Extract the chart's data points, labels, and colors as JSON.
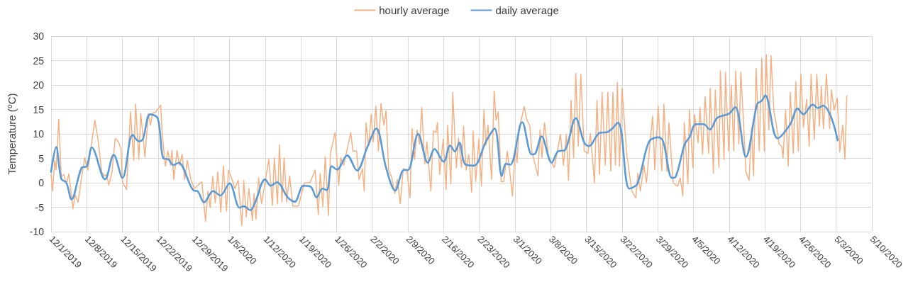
{
  "chart_data": {
    "type": "line",
    "ylabel": "Temperature (⁰C)",
    "legend": "top",
    "grid": true,
    "marker": "none",
    "xlim": [
      "2019-12-01",
      "2020-05-10"
    ],
    "xticks": [
      {
        "value": "2019-12-01",
        "label": "12/1/2019"
      },
      {
        "value": "2019-12-08",
        "label": "12/8/2019"
      },
      {
        "value": "2019-12-15",
        "label": "12/15/2019"
      },
      {
        "value": "2019-12-22",
        "label": "12/22/2019"
      },
      {
        "value": "2019-12-29",
        "label": "12/29/2019"
      },
      {
        "value": "2020-01-05",
        "label": "1/5/2020"
      },
      {
        "value": "2020-01-12",
        "label": "1/12/2020"
      },
      {
        "value": "2020-01-19",
        "label": "1/19/2020"
      },
      {
        "value": "2020-01-26",
        "label": "1/26/2020"
      },
      {
        "value": "2020-02-02",
        "label": "2/2/2020"
      },
      {
        "value": "2020-02-09",
        "label": "2/9/2020"
      },
      {
        "value": "2020-02-16",
        "label": "2/16/2020"
      },
      {
        "value": "2020-02-23",
        "label": "2/23/2020"
      },
      {
        "value": "2020-03-01",
        "label": "3/1/2020"
      },
      {
        "value": "2020-03-08",
        "label": "3/8/2020"
      },
      {
        "value": "2020-03-15",
        "label": "3/15/2020"
      },
      {
        "value": "2020-03-22",
        "label": "3/22/2020"
      },
      {
        "value": "2020-03-29",
        "label": "3/29/2020"
      },
      {
        "value": "2020-04-05",
        "label": "4/5/2020"
      },
      {
        "value": "2020-04-12",
        "label": "4/12/2020"
      },
      {
        "value": "2020-04-19",
        "label": "4/19/2020"
      },
      {
        "value": "2020-04-26",
        "label": "4/26/2020"
      },
      {
        "value": "2020-05-03",
        "label": "5/3/2020"
      },
      {
        "value": "2020-05-10",
        "label": "5/10/2020"
      }
    ],
    "ylim": [
      -10,
      30
    ],
    "yticks": [
      -10,
      -5,
      0,
      5,
      10,
      15,
      20,
      25,
      30
    ],
    "series": [
      {
        "name": "hourly average",
        "color": "#f4b183",
        "x": [
          "2019-12-01T00:00",
          "2019-12-01T07:00",
          "2019-12-01T17:00",
          "2019-12-02T00:00",
          "2019-12-02T12:00",
          "2019-12-03T00:00",
          "2019-12-03T12:00",
          "2019-12-04T00:00",
          "2019-12-04T12:00",
          "2019-12-05T07:00",
          "2019-12-05T17:00",
          "2019-12-06T07:00",
          "2019-12-07T00:00",
          "2019-12-07T14:00",
          "2019-12-08T05:00",
          "2019-12-09T14:00",
          "2019-12-10T05:00",
          "2019-12-10T22:00",
          "2019-12-11T12:00",
          "2019-12-11T22:00",
          "2019-12-12T07:00",
          "2019-12-12T22:00",
          "2019-12-13T14:00",
          "2019-12-14T05:00",
          "2019-12-14T17:00",
          "2019-12-15T00:00",
          "2019-12-15T19:00",
          "2019-12-16T14:00",
          "2019-12-17T05:00",
          "2019-12-17T14:00",
          "2019-12-18T05:00",
          "2019-12-18T14:00",
          "2019-12-19T10:00",
          "2019-12-20T02:00",
          "2019-12-20T12:00",
          "2019-12-20T22:00",
          "2019-12-21T14:00",
          "2019-12-22T12:00",
          "2019-12-22T19:00",
          "2019-12-23T10:00",
          "2019-12-23T22:00",
          "2019-12-24T10:00",
          "2019-12-24T17:00",
          "2019-12-25T02:00",
          "2019-12-25T17:00",
          "2019-12-26T05:00",
          "2019-12-26T17:00",
          "2019-12-27T05:00",
          "2019-12-27T17:00",
          "2019-12-28T10:00",
          "2019-12-29T02:00",
          "2019-12-29T19:00",
          "2019-12-30T14:00",
          "2019-12-31T07:00",
          "2019-12-31T19:00",
          "2020-01-01T05:00",
          "2020-01-01T17:00",
          "2020-01-02T05:00",
          "2020-01-02T17:00",
          "2020-01-03T07:00",
          "2020-01-03T19:00",
          "2020-01-04T10:00",
          "2020-01-04T19:00",
          "2020-01-05T12:00",
          "2020-01-06T02:00",
          "2020-01-06T17:00",
          "2020-01-07T10:00",
          "2020-01-07T19:00",
          "2020-01-08T07:00",
          "2020-01-08T19:00",
          "2020-01-09T12:00",
          "2020-01-09T19:00",
          "2020-01-10T05:00",
          "2020-01-10T17:00",
          "2020-01-11T07:00",
          "2020-01-12T17:00",
          "2020-01-13T10:00",
          "2020-01-13T19:00",
          "2020-01-14T10:00",
          "2020-01-14T19:00",
          "2020-01-15T07:00",
          "2020-01-15T17:00",
          "2020-01-16T05:00",
          "2020-01-16T19:00",
          "2020-01-17T10:00",
          "2020-01-18T12:00",
          "2020-01-19T17:00",
          "2020-01-20T19:00",
          "2020-01-21T19:00",
          "2020-01-22T10:00",
          "2020-01-22T19:00",
          "2020-01-23T07:00",
          "2020-01-23T19:00",
          "2020-01-24T10:00",
          "2020-01-24T19:00",
          "2020-01-25T17:00",
          "2020-01-26T10:00",
          "2020-01-26T19:00",
          "2020-01-27T10:00",
          "2020-01-28T19:00",
          "2020-01-29T05:00",
          "2020-01-29T22:00",
          "2020-01-30T10:00",
          "2020-01-31T02:00",
          "2020-01-31T10:00",
          "2020-01-31T19:00",
          "2020-02-01T07:00",
          "2020-02-01T19:00",
          "2020-02-02T05:00",
          "2020-02-02T17:00",
          "2020-02-03T05:00",
          "2020-02-03T17:00",
          "2020-02-04T07:00",
          "2020-02-04T17:00",
          "2020-02-05T05:00",
          "2020-02-05T19:00",
          "2020-02-06T10:00",
          "2020-02-06T22:00",
          "2020-02-07T12:00",
          "2020-02-08T02:00",
          "2020-02-08T19:00",
          "2020-02-09T10:00",
          "2020-02-09T19:00",
          "2020-02-10T07:00",
          "2020-02-10T19:00",
          "2020-02-11T07:00",
          "2020-02-11T17:00",
          "2020-02-12T07:00",
          "2020-02-12T17:00",
          "2020-02-13T12:00",
          "2020-02-14T00:00",
          "2020-02-14T12:00",
          "2020-02-14T19:00",
          "2020-02-15T05:00",
          "2020-02-15T22:00",
          "2020-02-16T12:00",
          "2020-02-16T19:00",
          "2020-02-17T10:00",
          "2020-02-17T19:00",
          "2020-02-18T12:00",
          "2020-02-18T22:00",
          "2020-02-19T12:00",
          "2020-02-19T22:00",
          "2020-02-20T10:00",
          "2020-02-20T22:00",
          "2020-02-21T12:00",
          "2020-02-21T19:00",
          "2020-02-22T07:00",
          "2020-02-22T22:00",
          "2020-02-23T10:00",
          "2020-02-23T22:00",
          "2020-02-24T07:00",
          "2020-02-24T17:00",
          "2020-02-25T10:00",
          "2020-02-25T22:00",
          "2020-02-26T07:00",
          "2020-02-26T17:00",
          "2020-02-27T07:00",
          "2020-02-27T19:00",
          "2020-02-28T12:00",
          "2020-02-29T12:00",
          "2020-03-01T02:00",
          "2020-03-01T10:00",
          "2020-03-01T19:00",
          "2020-03-02T10:00",
          "2020-03-02T19:00",
          "2020-03-03T07:00",
          "2020-03-03T22:00",
          "2020-03-04T07:00",
          "2020-03-05T12:00",
          "2020-03-05T22:00",
          "2020-03-06T07:00",
          "2020-03-06T19:00",
          "2020-03-07T14:00",
          "2020-03-08T17:00",
          "2020-03-09T22:00",
          "2020-03-10T12:00",
          "2020-03-11T02:00",
          "2020-03-11T12:00",
          "2020-03-12T00:00",
          "2020-03-12T12:00",
          "2020-03-12T22:00",
          "2020-03-13T10:00",
          "2020-03-13T22:00",
          "2020-03-14T14:00",
          "2020-03-15T07:00",
          "2020-03-15T19:00",
          "2020-03-16T14:00",
          "2020-03-17T02:00",
          "2020-03-17T14:00",
          "2020-03-18T02:00",
          "2020-03-18T17:00",
          "2020-03-19T05:00",
          "2020-03-19T19:00",
          "2020-03-20T05:00",
          "2020-03-20T17:00",
          "2020-03-21T02:00",
          "2020-03-21T12:00",
          "2020-03-22T00:00",
          "2020-03-22T22:00",
          "2020-03-23T22:00",
          "2020-03-24T17:00",
          "2020-03-25T02:00",
          "2020-03-25T14:00",
          "2020-03-26T07:00",
          "2020-03-26T19:00",
          "2020-03-27T07:00",
          "2020-03-28T00:00",
          "2020-03-28T10:00",
          "2020-03-29T02:00",
          "2020-03-29T19:00",
          "2020-03-30T05:00",
          "2020-03-30T19:00",
          "2020-03-31T05:00",
          "2020-04-01T00:00",
          "2020-04-01T22:00",
          "2020-04-02T10:00",
          "2020-04-02T22:00",
          "2020-04-03T05:00",
          "2020-04-03T22:00",
          "2020-04-04T05:00",
          "2020-04-04T22:00",
          "2020-04-05T05:00",
          "2020-04-05T22:00",
          "2020-04-06T07:00",
          "2020-04-06T19:00",
          "2020-04-07T07:00",
          "2020-04-08T00:00",
          "2020-04-08T07:00",
          "2020-04-08T22:00",
          "2020-04-09T07:00",
          "2020-04-10T00:00",
          "2020-04-10T07:00",
          "2020-04-11T00:00",
          "2020-04-11T07:00",
          "2020-04-11T22:00",
          "2020-04-12T10:00",
          "2020-04-12T22:00",
          "2020-04-13T07:00",
          "2020-04-13T22:00",
          "2020-04-14T07:00",
          "2020-04-14T19:00",
          "2020-04-15T07:00",
          "2020-04-15T22:00",
          "2020-04-16T10:00",
          "2020-04-16T19:00",
          "2020-04-17T07:00",
          "2020-04-17T22:00",
          "2020-04-18T10:00",
          "2020-04-18T22:00",
          "2020-04-19T07:00",
          "2020-04-19T19:00",
          "2020-04-20T05:00",
          "2020-04-20T19:00",
          "2020-04-21T07:00",
          "2020-04-21T19:00",
          "2020-04-22T07:00",
          "2020-04-22T14:00",
          "2020-04-23T02:00",
          "2020-04-23T14:00",
          "2020-04-24T00:00",
          "2020-04-24T14:00",
          "2020-04-25T02:00",
          "2020-04-25T14:00",
          "2020-04-26T02:00",
          "2020-04-26T14:00",
          "2020-04-27T05:00",
          "2020-04-27T17:00",
          "2020-04-28T02:00",
          "2020-04-28T17:00",
          "2020-04-29T05:00",
          "2020-04-29T17:00",
          "2020-04-30T02:00",
          "2020-04-30T12:00",
          "2020-05-01T02:00",
          "2020-05-01T17:00",
          "2020-05-02T02:00",
          "2020-05-02T14:00",
          "2020-05-03T05:00",
          "2020-05-03T17:00",
          "2020-05-04T07:00",
          "2020-05-04T17:00",
          "2020-05-05T02:00"
        ],
        "values": [
          1.7,
          -1.7,
          4.6,
          2.6,
          13.0,
          1.2,
          1.7,
          -0.2,
          1.8,
          -5.3,
          -2.4,
          -4.0,
          1.2,
          5.1,
          2.6,
          12.8,
          8.9,
          2.2,
          1.4,
          1.7,
          -0.5,
          1.9,
          9.1,
          8.4,
          7.0,
          0.2,
          -1.4,
          14.5,
          4.6,
          16.1,
          4.8,
          14.2,
          5.3,
          14.2,
          11.8,
          14.2,
          14.5,
          15.9,
          9.9,
          3.4,
          6.5,
          3.6,
          6.6,
          0.7,
          6.6,
          3.6,
          5.8,
          0.7,
          4.6,
          0.7,
          -1.2,
          -0.5,
          0.2,
          -7.9,
          -1.7,
          -5.1,
          1.3,
          -4.1,
          2.2,
          -6.0,
          3.4,
          -5.8,
          2.6,
          0.7,
          -1.2,
          0.5,
          -8.8,
          0.5,
          -7.0,
          -1.2,
          -7.7,
          -2.2,
          -7.5,
          1.0,
          -4.3,
          4.8,
          -4.6,
          5.1,
          -4.3,
          7.7,
          -3.9,
          5.1,
          -3.9,
          1.4,
          -4.8,
          -4.8,
          0.0,
          0.0,
          2.6,
          -6.5,
          1.9,
          -4.8,
          5.3,
          -6.7,
          6.0,
          10.3,
          -0.5,
          5.1,
          3.6,
          10.3,
          6.5,
          6.5,
          0.7,
          2.9,
          -1.7,
          12.3,
          7.5,
          14.0,
          8.4,
          15.7,
          6.5,
          16.2,
          11.8,
          14.7,
          2.6,
          1.2,
          -2.2,
          0.7,
          -4.3,
          2.9,
          2.6,
          -3.1,
          11.1,
          4.8,
          10.8,
          7.9,
          15.4,
          3.8,
          8.4,
          -1.7,
          10.6,
          10.3,
          12.3,
          1.7,
          8.9,
          -1.4,
          11.8,
          -0.2,
          18.5,
          3.1,
          9.1,
          3.1,
          11.6,
          2.6,
          5.8,
          -1.9,
          10.6,
          0.2,
          8.9,
          -0.7,
          14.9,
          7.7,
          11.8,
          0.7,
          18.8,
          12.8,
          14.5,
          0.2,
          0.2,
          6.5,
          -2.7,
          7.5,
          4.1,
          11.3,
          13.7,
          15.6,
          13.0,
          11.6,
          6.5,
          1.4,
          10.8,
          5.1,
          12.3,
          5.3,
          3.1,
          9.9,
          3.6,
          9.9,
          0.5,
          16.9,
          5.1,
          22.4,
          7.5,
          22.2,
          6.5,
          6.0,
          10.1,
          0.0,
          16.9,
          1.7,
          18.5,
          3.6,
          18.5,
          2.4,
          18.5,
          3.6,
          20.5,
          3.4,
          19.3,
          5.8,
          -1.7,
          -3.1,
          1.9,
          -1.7,
          3.6,
          0.0,
          6.0,
          13.7,
          2.6,
          15.7,
          2.4,
          16.1,
          2.4,
          12.3,
          0.0,
          -0.7,
          1.0,
          -2.7,
          12.3,
          -0.2,
          14.9,
          3.1,
          14.0,
          8.2,
          15.4,
          5.8,
          17.6,
          6.0,
          19.3,
          1.9,
          19.0,
          3.1,
          22.9,
          4.8,
          22.6,
          6.5,
          20.0,
          6.5,
          22.9,
          7.9,
          22.6,
          13.2,
          2.2,
          0.5,
          11.3,
          1.4,
          23.4,
          6.5,
          25.5,
          6.5,
          26.2,
          10.8,
          26.0,
          14.5,
          11.8,
          7.9,
          7.5,
          5.1,
          14.9,
          3.4,
          18.5,
          6.0,
          20.7,
          6.5,
          22.2,
          11.3,
          17.1,
          7.5,
          22.2,
          8.9,
          22.2,
          11.6,
          19.7,
          11.1,
          22.2,
          11.1,
          19.0,
          14.9,
          17.3,
          6.3,
          11.8,
          4.8,
          17.8
        ]
      },
      {
        "name": "daily average",
        "color": "#5b9bd5",
        "x": [
          "2019-12-01",
          "2019-12-02",
          "2019-12-03",
          "2019-12-04",
          "2019-12-05",
          "2019-12-07",
          "2019-12-08",
          "2019-12-09",
          "2019-12-11T14:00",
          "2019-12-13T07:00",
          "2019-12-15",
          "2019-12-17",
          "2019-12-18T05:00",
          "2019-12-19",
          "2019-12-20T10:00",
          "2019-12-21T22:00",
          "2019-12-23",
          "2019-12-24",
          "2019-12-25",
          "2019-12-26",
          "2019-12-29",
          "2019-12-29T17:00",
          "2019-12-31",
          "2020-01-01T19:00",
          "2020-01-03T05:00",
          "2020-01-05",
          "2020-01-07",
          "2020-01-07T19:00",
          "2020-01-09T02:00",
          "2020-01-10",
          "2020-01-12",
          "2020-01-13T02:00",
          "2020-01-14T07:00",
          "2020-01-16T10:00",
          "2020-01-17T19:00",
          "2020-01-19T12:00",
          "2020-01-20T22:00",
          "2020-01-22T02:00",
          "2020-01-23T05:00",
          "2020-01-24T02:00",
          "2020-01-25T02:00",
          "2020-01-26T02:00",
          "2020-01-28T02:00",
          "2020-01-30",
          "2020-02-01",
          "2020-02-02T19:00",
          "2020-02-04T17:00",
          "2020-02-06T12:00",
          "2020-02-08T05:00",
          "2020-02-09",
          "2020-02-11",
          "2020-02-12T22:00",
          "2020-02-14T05:00",
          "2020-02-16",
          "2020-02-17T07:00",
          "2020-02-18T05:00",
          "2020-02-19T02:00",
          "2020-02-20T05:00",
          "2020-02-21T22:00",
          "2020-02-24T07:00",
          "2020-02-26",
          "2020-02-27T10:00",
          "2020-02-28T05:00",
          "2020-02-29T02:00",
          "2020-03-02T10:00",
          "2020-03-04T07:00",
          "2020-03-05",
          "2020-03-06T05:00",
          "2020-03-08T05:00",
          "2020-03-09T10:00",
          "2020-03-10T19:00",
          "2020-03-12T22:00",
          "2020-03-14T14:00",
          "2020-03-15T12:00",
          "2020-03-17T14:00",
          "2020-03-19T05:00",
          "2020-03-21T05:00",
          "2020-03-23T10:00",
          "2020-03-25",
          "2020-03-27T07:00",
          "2020-03-29T05:00",
          "2020-03-30T02:00",
          "2020-03-31T19:00",
          "2020-04-01T12:00",
          "2020-04-03T07:00",
          "2020-04-04T05:00",
          "2020-04-05T12:00",
          "2020-04-07",
          "2020-04-08T05:00",
          "2020-04-09T14:00",
          "2020-04-11",
          "2020-04-12T02:00",
          "2020-04-13T05:00",
          "2020-04-15T07:00",
          "2020-04-17T12:00",
          "2020-04-18T10:00",
          "2020-04-19T02:00",
          "2020-04-21T12:00",
          "2020-04-24",
          "2020-04-25T10:00",
          "2020-04-26T14:00",
          "2020-04-28T10:00",
          "2020-04-29T10:00",
          "2020-04-30T10:00",
          "2020-05-01T22:00",
          "2020-05-03T07:00"
        ],
        "values": [
          2.2,
          7.3,
          0.8,
          0.0,
          -3.4,
          3.1,
          3.4,
          7.2,
          0.7,
          5.7,
          1.0,
          9.8,
          8.5,
          8.9,
          14.0,
          13.2,
          5.0,
          4.8,
          3.6,
          4.1,
          -1.6,
          -1.7,
          -4.0,
          -1.7,
          -2.6,
          -0.1,
          -5.1,
          -4.8,
          -5.6,
          -4.1,
          0.7,
          -0.6,
          0.1,
          -3.0,
          -3.9,
          -0.6,
          -0.8,
          -3.0,
          -1.2,
          -1.5,
          3.4,
          2.7,
          5.6,
          2.5,
          7.2,
          11.1,
          3.1,
          -1.6,
          2.6,
          2.6,
          10.0,
          4.1,
          6.9,
          4.3,
          7.6,
          6.4,
          8.2,
          3.8,
          3.5,
          8.4,
          11.1,
          1.4,
          3.9,
          3.7,
          12.4,
          5.8,
          6.0,
          9.5,
          4.1,
          6.4,
          6.7,
          13.2,
          8.2,
          7.5,
          10.2,
          10.4,
          12.3,
          -1.2,
          -0.2,
          8.4,
          9.3,
          8.4,
          1.0,
          1.2,
          7.9,
          9.3,
          12.0,
          12.0,
          10.9,
          13.2,
          13.8,
          14.2,
          15.5,
          5.3,
          16.1,
          16.8,
          17.9,
          9.1,
          12.0,
          15.2,
          14.0,
          16.0,
          15.3,
          15.8,
          13.7,
          8.7
        ]
      }
    ]
  }
}
